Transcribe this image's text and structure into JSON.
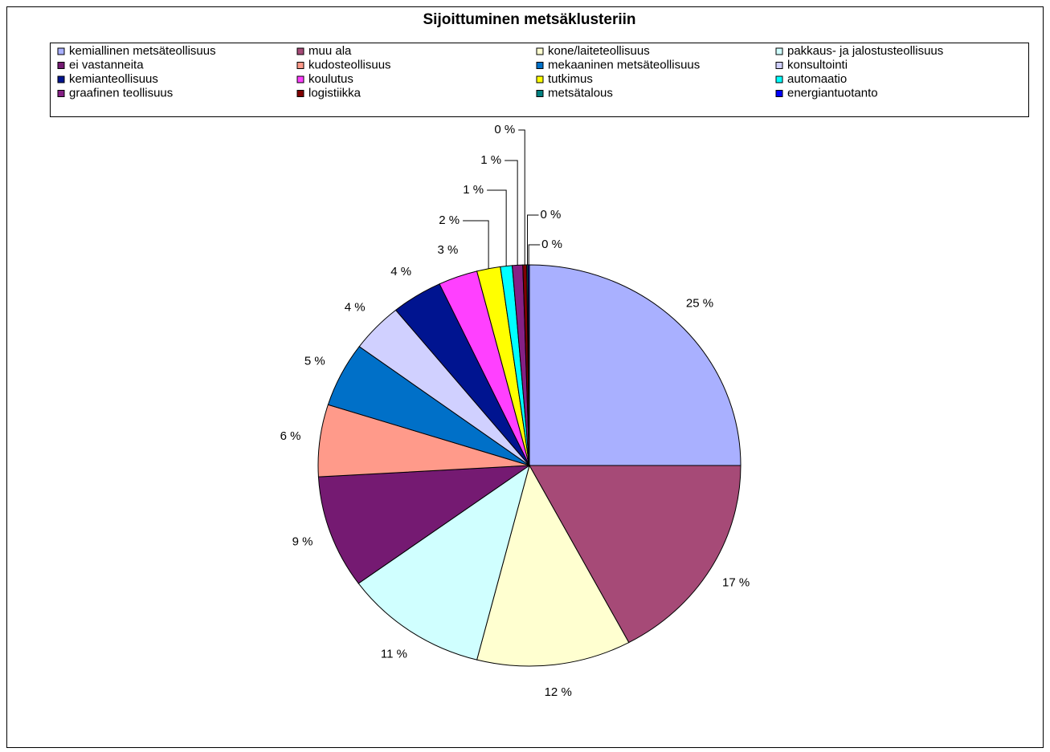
{
  "chart_data": {
    "type": "pie",
    "title": "Sijoittuminen metsäklusteriin",
    "categories": [
      "kemiallinen metsäteollisuus",
      "muu ala",
      "kone/laiteteollisuus",
      "pakkaus- ja jalostusteollisuus",
      "ei vastanneita",
      "kudosteollisuus",
      "mekaaninen metsäteollisuus",
      "konsultointi",
      "kemianteollisuus",
      "koulutus",
      "tutkimus",
      "automaatio",
      "graafinen teollisuus",
      "logistiikka",
      "metsätalous",
      "energiantuotanto"
    ],
    "values": [
      25.0,
      17.2,
      11.8,
      11.0,
      9.1,
      5.8,
      5.2,
      4.0,
      3.9,
      3.0,
      1.8,
      0.9,
      0.8,
      0.3,
      0.1,
      0.1
    ],
    "value_labels": [
      "25 %",
      "17 %",
      "12 %",
      "11 %",
      "9 %",
      "6 %",
      "5 %",
      "4 %",
      "4 %",
      "3 %",
      "2 %",
      "1 %",
      "1 %",
      "0 %",
      "0 %",
      "0 %"
    ],
    "colors": [
      "#a9b0ff",
      "#a64a77",
      "#ffffd0",
      "#d0ffff",
      "#751a72",
      "#ff9a8a",
      "#0070c8",
      "#d0d0ff",
      "#001490",
      "#ff40ff",
      "#ffff00",
      "#00ffff",
      "#852085",
      "#800000",
      "#008080",
      "#0000ff"
    ],
    "legend": "top"
  }
}
